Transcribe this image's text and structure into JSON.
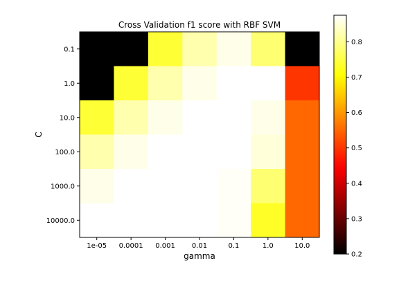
{
  "chart_data": {
    "type": "heatmap",
    "title": "Cross Validation f1 score with RBF SVM",
    "xlabel": "gamma",
    "ylabel": "C",
    "x_categories": [
      "1e-05",
      "0.0001",
      "0.001",
      "0.01",
      "0.1",
      "1.0",
      "10.0"
    ],
    "y_categories": [
      "0.1",
      "1.0",
      "10.0",
      "100.0",
      "1000.0",
      "10000.0"
    ],
    "values": [
      [
        0.2,
        0.2,
        0.74,
        0.82,
        0.86,
        0.78,
        0.2
      ],
      [
        0.2,
        0.74,
        0.82,
        0.86,
        0.88,
        0.88,
        0.5
      ],
      [
        0.74,
        0.82,
        0.86,
        0.88,
        0.88,
        0.86,
        0.55
      ],
      [
        0.82,
        0.86,
        0.88,
        0.9,
        0.9,
        0.85,
        0.55
      ],
      [
        0.86,
        0.88,
        0.88,
        0.89,
        0.87,
        0.78,
        0.55
      ],
      [
        0.88,
        0.88,
        0.9,
        0.88,
        0.87,
        0.73,
        0.55
      ]
    ],
    "colormap": "hot",
    "vmin": 0.2,
    "vmax": 0.875,
    "colorbar": {
      "ticks": [
        0.2,
        0.3,
        0.4,
        0.5,
        0.6,
        0.7,
        0.8
      ],
      "labels": [
        "0.2",
        "0.3",
        "0.4",
        "0.5",
        "0.6",
        "0.7",
        "0.8"
      ]
    },
    "grid": false
  }
}
